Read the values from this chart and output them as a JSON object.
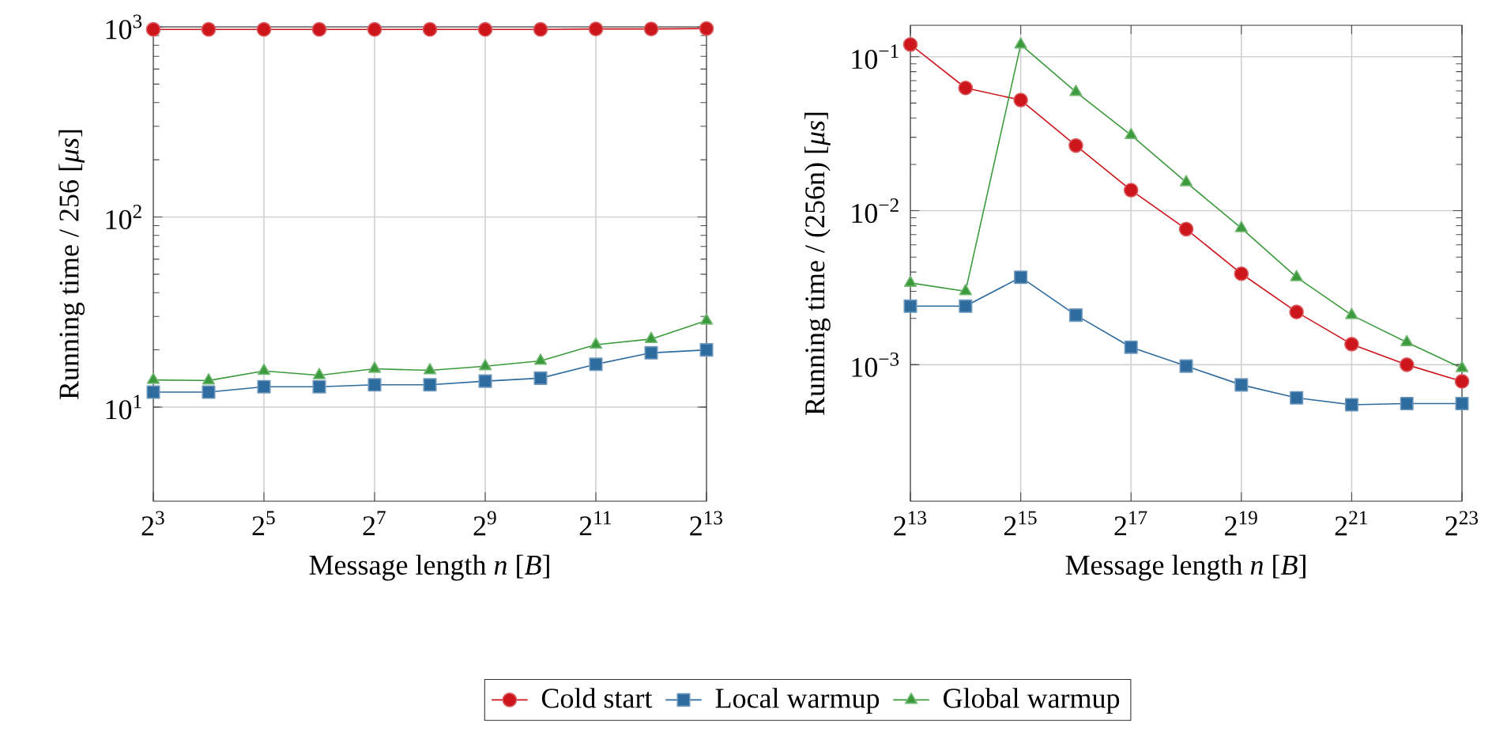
{
  "chart_data": [
    {
      "type": "line",
      "xlabel": "Message length *n* [*B*]",
      "ylabel": "Running time / 256 [*μs*]",
      "log": "xy",
      "grid": true,
      "legend": "bottom",
      "line_style": "solid",
      "x": [
        8,
        16,
        32,
        64,
        128,
        256,
        512,
        1024,
        2048,
        4096,
        8192
      ],
      "xlim": [
        8,
        8192
      ],
      "xticks": [
        {
          "value": 8,
          "label": "2$^{3}$"
        },
        {
          "value": 32,
          "label": "2$^{5}$"
        },
        {
          "value": 128,
          "label": "2$^{7}$"
        },
        {
          "value": 512,
          "label": "2$^{9}$"
        },
        {
          "value": 2048,
          "label": "2$^{11}$"
        },
        {
          "value": 8192,
          "label": "2$^{13}$"
        }
      ],
      "ylim": [
        3.2,
        1000
      ],
      "yticks": [
        {
          "value": 10,
          "label": "10$^{1}$"
        },
        {
          "value": 100,
          "label": "10$^{2}$"
        },
        {
          "value": 1000,
          "label": "10$^{3}$"
        }
      ],
      "series": [
        {
          "name": "Cold start",
          "color": "#cc161c",
          "marker": "circle",
          "values": [
            970,
            970,
            970,
            970,
            970,
            970,
            970,
            970,
            975,
            975,
            980
          ]
        },
        {
          "name": "Local warmup",
          "color": "#2e6b9e",
          "marker": "square",
          "values": [
            12.0,
            12.0,
            12.8,
            12.8,
            13.1,
            13.1,
            13.7,
            14.2,
            16.8,
            19.3,
            20.0
          ]
        },
        {
          "name": "Global warmup",
          "color": "#3b9a3b",
          "marker": "triangle",
          "values": [
            13.9,
            13.8,
            15.5,
            14.7,
            15.9,
            15.6,
            16.4,
            17.5,
            21.3,
            22.8,
            28.5
          ]
        }
      ]
    },
    {
      "type": "line",
      "xlabel": "Message length *n* [*B*]",
      "ylabel": "Running time / (256n) [*μs*]",
      "log": "xy",
      "grid": true,
      "line_style": "solid",
      "x": [
        8192,
        16384,
        32768,
        65536,
        131072,
        262144,
        524288,
        1048576,
        2097152,
        4194304,
        8388608
      ],
      "xlim": [
        8192,
        8388608
      ],
      "xticks": [
        {
          "value": 8192,
          "label": "2$^{13}$"
        },
        {
          "value": 32768,
          "label": "2$^{15}$"
        },
        {
          "value": 131072,
          "label": "2$^{17}$"
        },
        {
          "value": 524288,
          "label": "2$^{19}$"
        },
        {
          "value": 2097152,
          "label": "2$^{21}$"
        },
        {
          "value": 8388608,
          "label": "2$^{23}$"
        }
      ],
      "ylim": [
        0.00013,
        0.16
      ],
      "yticks": [
        {
          "value": 0.001,
          "label": "10$^{−3}$"
        },
        {
          "value": 0.01,
          "label": "10$^{−2}$"
        },
        {
          "value": 0.1,
          "label": "10$^{−1}$"
        }
      ],
      "series": [
        {
          "color": "#cc161c",
          "marker": "circle",
          "values": [
            0.12,
            0.0627,
            0.0523,
            0.0265,
            0.0136,
            0.0076,
            0.0039,
            0.0022,
            0.00136,
            0.001,
            0.00078
          ]
        },
        {
          "color": "#2e6b9e",
          "marker": "square",
          "values": [
            0.0024,
            0.0024,
            0.0037,
            0.0021,
            0.0013,
            0.00098,
            0.00074,
            0.00061,
            0.00055,
            0.00056,
            0.00056
          ]
        },
        {
          "color": "#3b9a3b",
          "marker": "triangle",
          "values": [
            0.0034,
            0.003,
            0.12,
            0.059,
            0.031,
            0.0153,
            0.0077,
            0.0037,
            0.0021,
            0.0014,
            0.00095
          ]
        }
      ]
    }
  ]
}
